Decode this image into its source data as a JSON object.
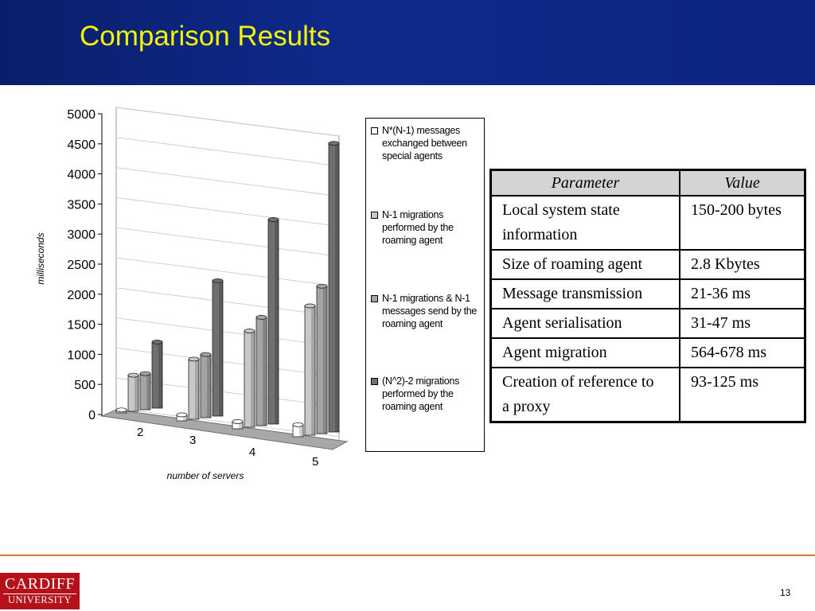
{
  "slide": {
    "title": "Comparison Results",
    "page_number": "13",
    "logo": {
      "top": "CARDIFF",
      "bottom": "UNIVERSITY"
    }
  },
  "colors": {
    "header_bg": "#0e2a8c",
    "title": "#f5f500",
    "footer_line": "#e07a2a",
    "logo_bg": "#b5111a"
  },
  "chart_data": {
    "type": "bar",
    "title": "",
    "xlabel": "number of servers",
    "ylabel": "milliseconds",
    "ylim": [
      0,
      5000
    ],
    "yticks": [
      "0",
      "500",
      "1000",
      "1500",
      "2000",
      "2500",
      "3000",
      "3500",
      "4000",
      "4500",
      "5000"
    ],
    "categories": [
      "2",
      "3",
      "4",
      "5"
    ],
    "grid": true,
    "legend_position": "right",
    "series": [
      {
        "name": "N*(N-1) messages exchanged between special agents",
        "color": "#ffffff",
        "values": [
          50,
          100,
          120,
          200
        ]
      },
      {
        "name": "N-1 migrations performed by the roaming agent",
        "color": "#c8c8c8",
        "values": [
          600,
          1000,
          1600,
          2150
        ]
      },
      {
        "name": "N-1 migrations & N-1 messages send by the roaming agent",
        "color": "#a4a4a4",
        "values": [
          600,
          1050,
          1800,
          2450
        ]
      },
      {
        "name": "(N^2)-2 migrations performed by the roaming agent",
        "color": "#707070",
        "values": [
          1100,
          2250,
          3400,
          4800
        ]
      }
    ]
  },
  "table": {
    "headers": [
      "Parameter",
      "Value"
    ],
    "rows": [
      [
        "Local system state information",
        "150-200 bytes"
      ],
      [
        "Size of roaming agent",
        "2.8 Kbytes"
      ],
      [
        "Message transmission",
        "21-36 ms"
      ],
      [
        "Agent serialisation",
        "31-47 ms"
      ],
      [
        "Agent migration",
        "564-678 ms"
      ],
      [
        "Creation of reference to a proxy",
        "93-125 ms"
      ]
    ]
  }
}
